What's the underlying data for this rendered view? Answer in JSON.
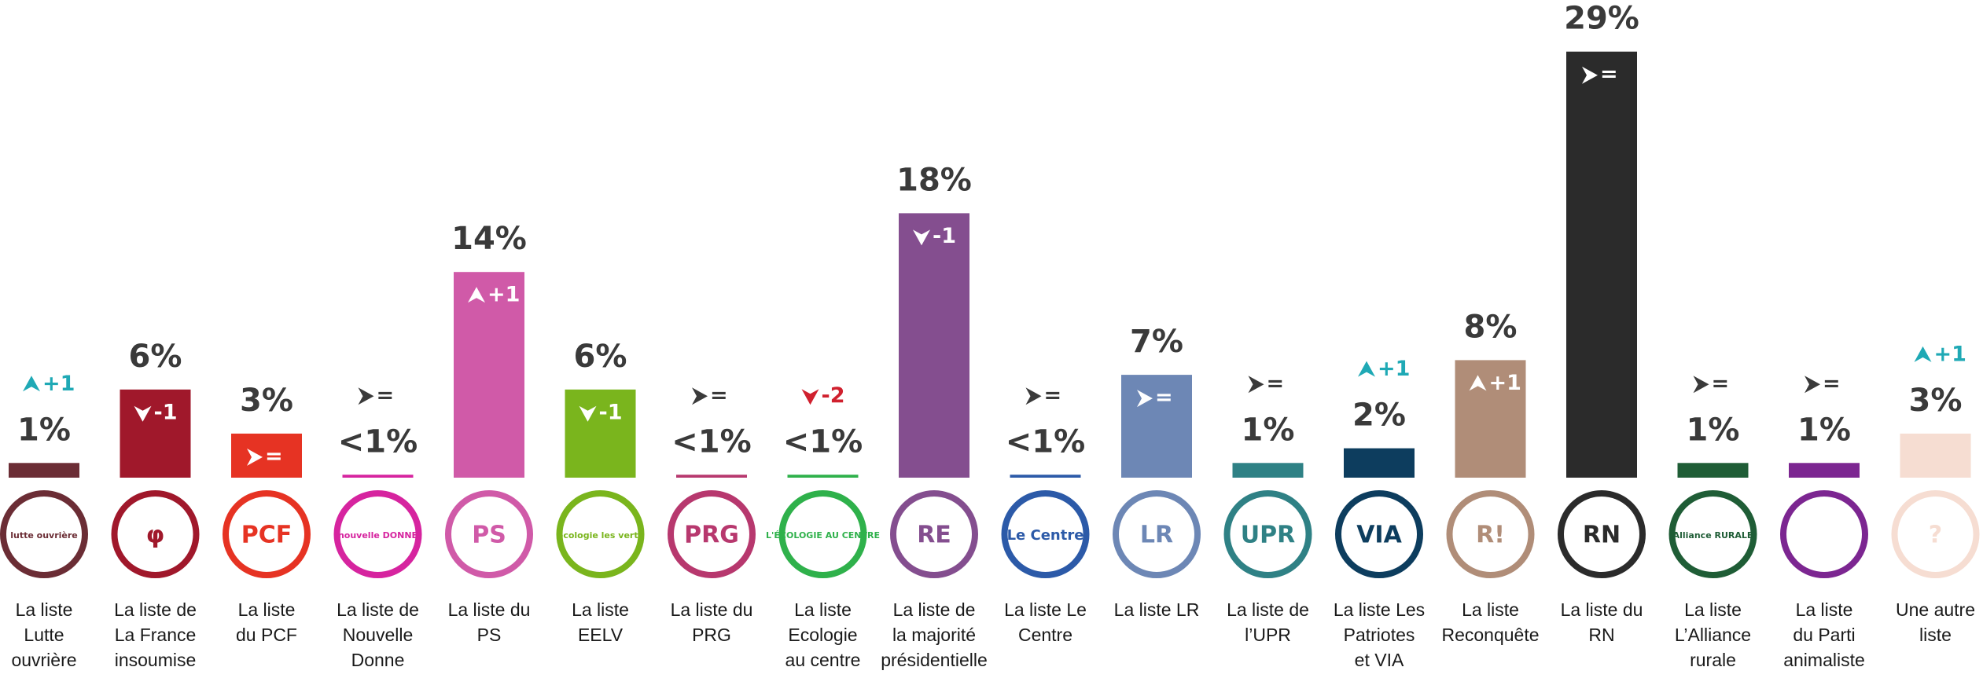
{
  "chart_data": {
    "type": "bar",
    "categories": [
      "La liste\nLutte\nouvrière",
      "La liste de\nLa France\ninsoumise",
      "La liste\ndu PCF",
      "La liste de\nNouvelle\nDonne",
      "La liste du\nPS",
      "La liste\nEELV",
      "La liste du\nPRG",
      "La liste\nEcologie\nau centre",
      "La liste de\nla majorité\nprésidentielle",
      "La liste Le\nCentre",
      "La liste LR",
      "La liste de\nl’UPR",
      "La liste Les\nPatriotes\net VIA",
      "La liste\nReconquête",
      "La liste du\nRN",
      "La liste\nL’Alliance\nrurale",
      "La liste\ndu Parti\nanimaliste",
      "Une autre\nliste"
    ],
    "values": [
      1,
      6,
      3,
      0.2,
      14,
      6,
      0.2,
      0.2,
      18,
      0.2,
      7,
      1,
      2,
      8,
      29,
      1,
      1,
      3
    ],
    "value_labels": [
      "1%",
      "6%",
      "3%",
      "<1%",
      "14%",
      "6%",
      "<1%",
      "<1%",
      "18%",
      "<1%",
      "7%",
      "1%",
      "2%",
      "8%",
      "29%",
      "1%",
      "1%",
      "3%"
    ],
    "changes": [
      "+1",
      "-1",
      "=",
      "=",
      "+1",
      "-1",
      "=",
      "-2",
      "-1",
      "=",
      "=",
      "=",
      "+1",
      "+1",
      "=",
      "=",
      "=",
      "+1"
    ],
    "logos": [
      "lutte ouvrière",
      "φ",
      "PCF",
      "nouvelle DONNE",
      "PS",
      "écologie les verts",
      "PRG",
      "L'ÉCOLOGIE AU CENTRE",
      "RE",
      "Le Centre",
      "LR",
      "UPR",
      "VIA",
      "R!",
      "RN",
      "Alliance RURALE",
      null,
      "?"
    ],
    "colors": [
      "#6b2d35",
      "#a0182b",
      "#e63323",
      "#d6249f",
      "#d05aa8",
      "#7ab51d",
      "#b7386e",
      "#2fb14b",
      "#844e8f",
      "#2c5aa8",
      "#6d87b5",
      "#2f8185",
      "#0d3d5e",
      "#b08d78",
      "#2b2b2b",
      "#1f5d36",
      "#7c2691",
      "#f6ddd2"
    ],
    "ylim": [
      0,
      30
    ]
  }
}
